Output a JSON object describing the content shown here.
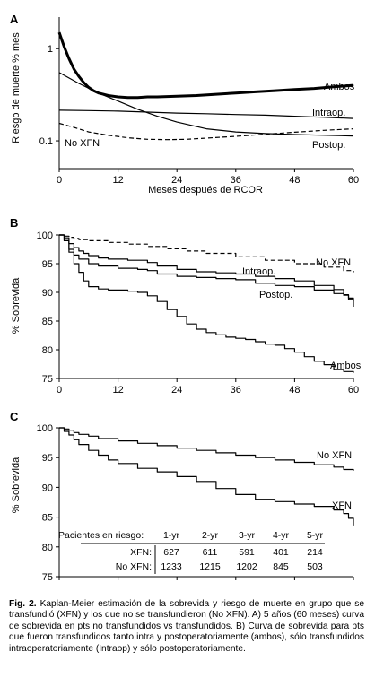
{
  "figure": {
    "caption_label": "Fig. 2.",
    "caption_text": "Kaplan-Meier estimación de la sobrevida y riesgo de muerte en grupo que se transfundió (XFN) y los que no se transfundieron (No XFN). A) 5 años (60 meses) curva de sobrevida en pts no transfundidos vs transfundidos. B) Curva de sobrevida para pts que fueron transfundidos tanto intra y postoperatoriamente (ambos), sólo transfundidos intraoperatoriamente (Intraop) y sólo postoperatoriamente."
  },
  "chart_data": [
    {
      "panel": "A",
      "type": "line",
      "xlabel": "Meses después de RCOR",
      "ylabel": "Riesgo de muerte % mes",
      "xlim": [
        0,
        60
      ],
      "ylim": [
        0.05,
        2.2
      ],
      "yscale": "log",
      "xticks": [
        0,
        12,
        24,
        36,
        48,
        60
      ],
      "yticks": [
        {
          "value": 1,
          "label": "1"
        },
        {
          "value": 0.1,
          "label": "0.1"
        }
      ],
      "series": [
        {
          "name": "Ambos",
          "style": "thick",
          "x": [
            0,
            1,
            2,
            3,
            4,
            5,
            6,
            7,
            8,
            9,
            10,
            12,
            14,
            16,
            18,
            20,
            24,
            28,
            32,
            36,
            40,
            44,
            48,
            52,
            56,
            60
          ],
          "y": [
            1.5,
            1.05,
            0.78,
            0.6,
            0.5,
            0.43,
            0.38,
            0.35,
            0.33,
            0.32,
            0.31,
            0.3,
            0.295,
            0.295,
            0.3,
            0.3,
            0.305,
            0.31,
            0.32,
            0.33,
            0.34,
            0.35,
            0.36,
            0.37,
            0.385,
            0.4
          ]
        },
        {
          "name": "Intraop.",
          "style": "thin",
          "x": [
            0,
            6,
            12,
            18,
            24,
            30,
            36,
            42,
            48,
            54,
            60
          ],
          "y": [
            0.215,
            0.213,
            0.21,
            0.205,
            0.2,
            0.197,
            0.193,
            0.19,
            0.185,
            0.18,
            0.175
          ]
        },
        {
          "name": "Postop.",
          "style": "thin",
          "x": [
            0,
            4,
            8,
            12,
            16,
            20,
            24,
            30,
            36,
            42,
            48,
            54,
            60
          ],
          "y": [
            0.55,
            0.42,
            0.33,
            0.27,
            0.22,
            0.185,
            0.16,
            0.135,
            0.125,
            0.12,
            0.117,
            0.115,
            0.113
          ]
        },
        {
          "name": "No XFN",
          "style": "dashed",
          "x": [
            0,
            3,
            6,
            10,
            14,
            18,
            22,
            26,
            30,
            36,
            42,
            48,
            54,
            60
          ],
          "y": [
            0.155,
            0.14,
            0.125,
            0.115,
            0.108,
            0.104,
            0.103,
            0.104,
            0.107,
            0.112,
            0.118,
            0.124,
            0.13,
            0.135
          ]
        }
      ]
    },
    {
      "panel": "B",
      "type": "line",
      "step": true,
      "ylabel": "% Sobrevida",
      "xlim": [
        0,
        60
      ],
      "ylim": [
        75,
        100
      ],
      "xticks": [
        0,
        12,
        24,
        36,
        48,
        60
      ],
      "yticks": [
        75,
        80,
        85,
        90,
        95,
        100
      ],
      "series": [
        {
          "name": "No XFN",
          "style": "dashed",
          "x": [
            0,
            1,
            2,
            3,
            4,
            6,
            10,
            14,
            18,
            22,
            26,
            30,
            36,
            42,
            48,
            54,
            58,
            60
          ],
          "y": [
            100,
            99.8,
            99.6,
            99.4,
            99.2,
            99,
            98.7,
            98.4,
            98,
            97.6,
            97.2,
            96.8,
            96.2,
            95.6,
            95,
            94.4,
            93.8,
            93.5
          ]
        },
        {
          "name": "Intraop.",
          "style": "solid",
          "x": [
            0,
            1,
            2,
            3,
            4,
            5,
            6,
            8,
            10,
            14,
            18,
            20,
            24,
            28,
            32,
            36,
            40,
            44,
            48,
            52,
            56,
            58,
            59,
            60
          ],
          "y": [
            100,
            99.5,
            98.5,
            97.8,
            97.2,
            96.8,
            96.4,
            96,
            95.8,
            95.6,
            95.2,
            94.6,
            94,
            93.6,
            93.4,
            93.2,
            92.8,
            92.4,
            92,
            91.2,
            90.5,
            89.5,
            88.8,
            88.5
          ]
        },
        {
          "name": "Postop.",
          "style": "solid",
          "x": [
            0,
            1,
            2,
            3,
            4,
            6,
            8,
            12,
            16,
            18,
            20,
            24,
            28,
            32,
            36,
            40,
            44,
            48,
            52,
            56,
            58,
            59,
            60
          ],
          "y": [
            100,
            99,
            97.5,
            96.5,
            95.8,
            95,
            94.6,
            94.2,
            94,
            93.8,
            93.2,
            92.8,
            92.6,
            92.4,
            92.2,
            91.6,
            91.2,
            91,
            90.4,
            89.8,
            89.6,
            89,
            87.5
          ]
        },
        {
          "name": "Ambos",
          "style": "solid",
          "x": [
            0,
            1,
            2,
            3,
            4,
            5,
            6,
            8,
            10,
            12,
            14,
            16,
            18,
            20,
            22,
            24,
            26,
            28,
            30,
            32,
            34,
            36,
            38,
            40,
            42,
            44,
            46,
            48,
            50,
            52,
            54,
            56,
            58,
            60
          ],
          "y": [
            100,
            99,
            97,
            95,
            93.5,
            92,
            91,
            90.6,
            90.4,
            90.4,
            90.2,
            90,
            89.4,
            88.4,
            87,
            85.8,
            84.5,
            83.6,
            83,
            82.6,
            82.2,
            82,
            81.8,
            81.4,
            81,
            80.8,
            80.2,
            79.6,
            78.8,
            78,
            77.4,
            76.6,
            76.2,
            76
          ]
        }
      ]
    },
    {
      "panel": "C",
      "type": "line",
      "step": true,
      "ylabel": "% Sobrevida",
      "xlim": [
        0,
        60
      ],
      "ylim": [
        75,
        100
      ],
      "xticks": [
        0,
        12,
        24,
        36,
        48,
        60
      ],
      "yticks": [
        75,
        80,
        85,
        90,
        95,
        100
      ],
      "series": [
        {
          "name": "No XFN",
          "style": "solid",
          "x": [
            0,
            1,
            2,
            3,
            4,
            6,
            8,
            12,
            16,
            20,
            24,
            28,
            32,
            36,
            40,
            44,
            48,
            52,
            56,
            58,
            60
          ],
          "y": [
            100,
            99.8,
            99.6,
            99.2,
            98.9,
            98.6,
            98.2,
            97.8,
            97.4,
            97,
            96.6,
            96.2,
            95.8,
            95.4,
            95,
            94.6,
            94.2,
            93.8,
            93.4,
            93,
            92.8
          ]
        },
        {
          "name": "XFN",
          "style": "solid",
          "x": [
            0,
            1,
            2,
            3,
            4,
            6,
            8,
            10,
            12,
            16,
            20,
            24,
            28,
            32,
            36,
            40,
            44,
            48,
            52,
            56,
            58,
            59,
            60
          ],
          "y": [
            100,
            99.4,
            98.8,
            98,
            97.2,
            96.2,
            95.4,
            94.6,
            94,
            93.2,
            92.6,
            91.8,
            91,
            89.8,
            88.8,
            88,
            87.6,
            87.2,
            86.8,
            86.2,
            85.6,
            84.8,
            83.6
          ]
        }
      ],
      "at_risk": {
        "title": "Pacientes en riesgo:",
        "columns": [
          "1-yr",
          "2-yr",
          "3-yr",
          "4-yr",
          "5-yr"
        ],
        "rows": [
          {
            "label": "XFN:",
            "values": [
              "627",
              "611",
              "591",
              "401",
              "214"
            ]
          },
          {
            "label": "No XFN:",
            "values": [
              "1233",
              "1215",
              "1202",
              "845",
              "503"
            ]
          }
        ]
      }
    }
  ]
}
